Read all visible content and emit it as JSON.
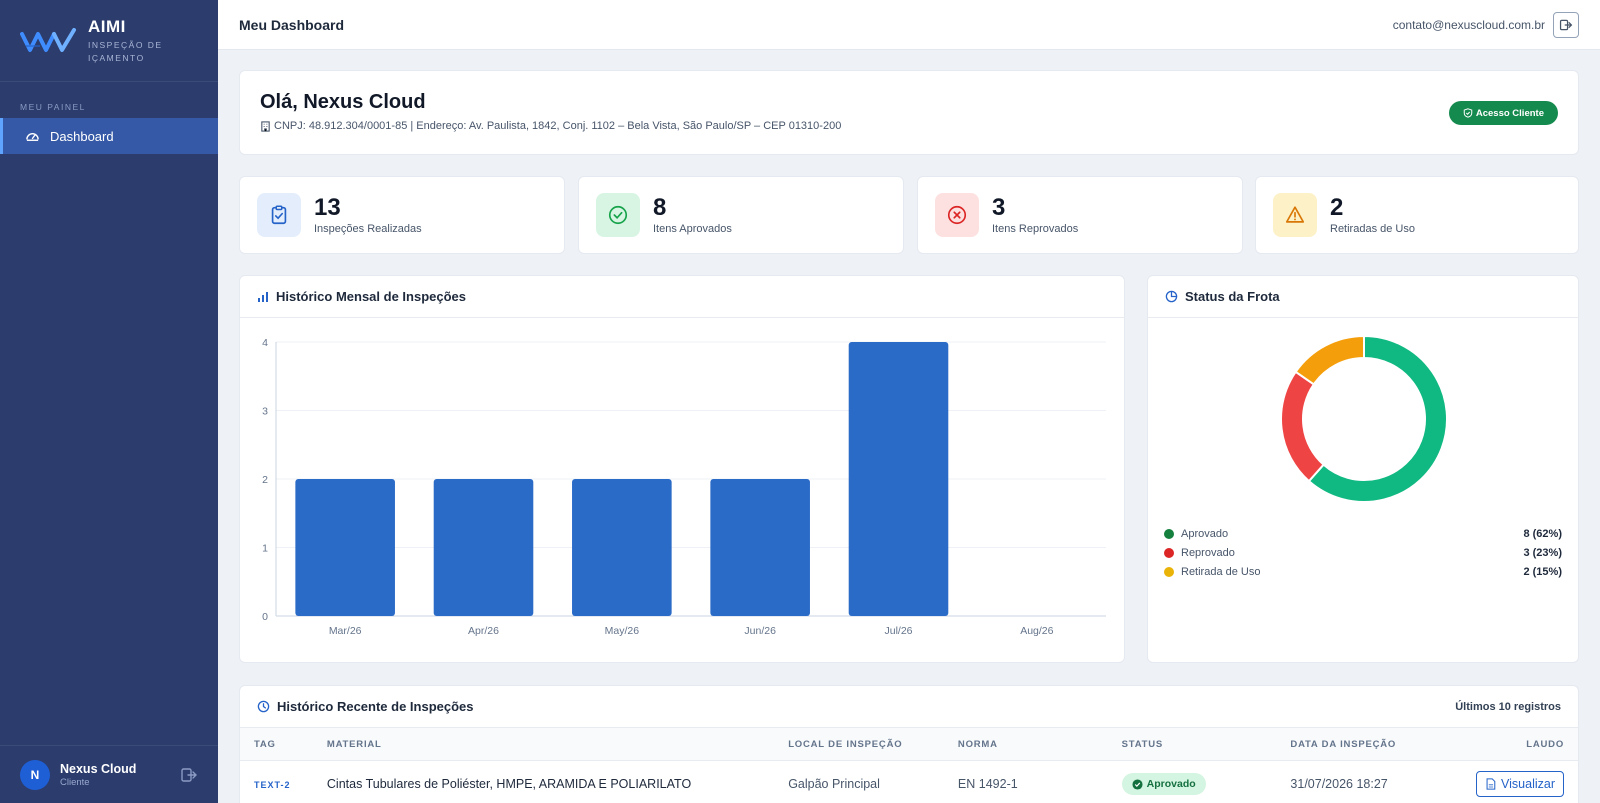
{
  "brand": {
    "name": "AIMI",
    "subtitle_line1": "INSPEÇÃO DE",
    "subtitle_line2": "IÇAMENTO"
  },
  "sidebar": {
    "section": "MEU PAINEL",
    "items": [
      {
        "label": "Dashboard",
        "icon": "gauge-icon",
        "active": true
      }
    ],
    "user": {
      "initial": "N",
      "name": "Nexus Cloud",
      "role": "Cliente"
    }
  },
  "topbar": {
    "title": "Meu Dashboard",
    "email": "contato@nexuscloud.com.br"
  },
  "welcome": {
    "greeting": "Olá, Nexus Cloud",
    "info": "CNPJ: 48.912.304/0001-85 | Endereço: Av. Paulista, 1842, Conj. 1102 – Bela Vista, São Paulo/SP – CEP 01310-200",
    "badge": "Acesso Cliente"
  },
  "stats": [
    {
      "value": "13",
      "label": "Inspeções Realizadas",
      "icon": "clipboard-check-icon",
      "bg": "#e3edfb",
      "color": "#2563c9"
    },
    {
      "value": "8",
      "label": "Itens Aprovados",
      "icon": "check-circle-icon",
      "bg": "#d8f5e4",
      "color": "#16a34a"
    },
    {
      "value": "3",
      "label": "Itens Reprovados",
      "icon": "x-circle-icon",
      "bg": "#fde1e1",
      "color": "#dc2626"
    },
    {
      "value": "2",
      "label": "Retiradas de Uso",
      "icon": "warning-icon",
      "bg": "#fdf1c7",
      "color": "#d97706"
    }
  ],
  "monthly_chart": {
    "title": "Histórico Mensal de Inspeções",
    "chart_data": {
      "type": "bar",
      "categories": [
        "Mar/26",
        "Apr/26",
        "May/26",
        "Jun/26",
        "Jul/26",
        "Aug/26"
      ],
      "values": [
        2,
        2,
        2,
        2,
        4,
        0
      ],
      "ylim": [
        0,
        4
      ],
      "yticks": [
        0,
        1,
        2,
        3,
        4
      ],
      "color": "#2a6bc8",
      "grid": true
    }
  },
  "fleet_status": {
    "title": "Status da Frota",
    "chart_data": {
      "type": "pie",
      "categories": [
        "Aprovado",
        "Reprovado",
        "Retirada de Uso"
      ],
      "values": [
        8,
        3,
        2
      ],
      "colors": [
        "#10b981",
        "#ef4444",
        "#f59e0b"
      ],
      "legend_dot_colors": [
        "#15803d",
        "#dc2626",
        "#eab308"
      ],
      "display_values": [
        "8 (62%)",
        "3 (23%)",
        "2 (15%)"
      ],
      "legend": "bottom"
    }
  },
  "recent": {
    "title": "Histórico Recente de Inspeções",
    "subtitle": "Últimos 10 registros",
    "columns": [
      "TAG",
      "MATERIAL",
      "LOCAL DE INSPEÇÃO",
      "NORMA",
      "STATUS",
      "DATA DA INSPEÇÃO",
      "LAUDO"
    ],
    "rows": [
      {
        "tag": "TEXT-2",
        "material": "Cintas Tubulares de Poliéster, HMPE, ARAMIDA E POLIARILATO",
        "local": "Galpão Principal",
        "norma": "EN 1492-1",
        "status": "Aprovado",
        "date": "31/07/2026 18:27",
        "action": "Visualizar"
      }
    ]
  }
}
